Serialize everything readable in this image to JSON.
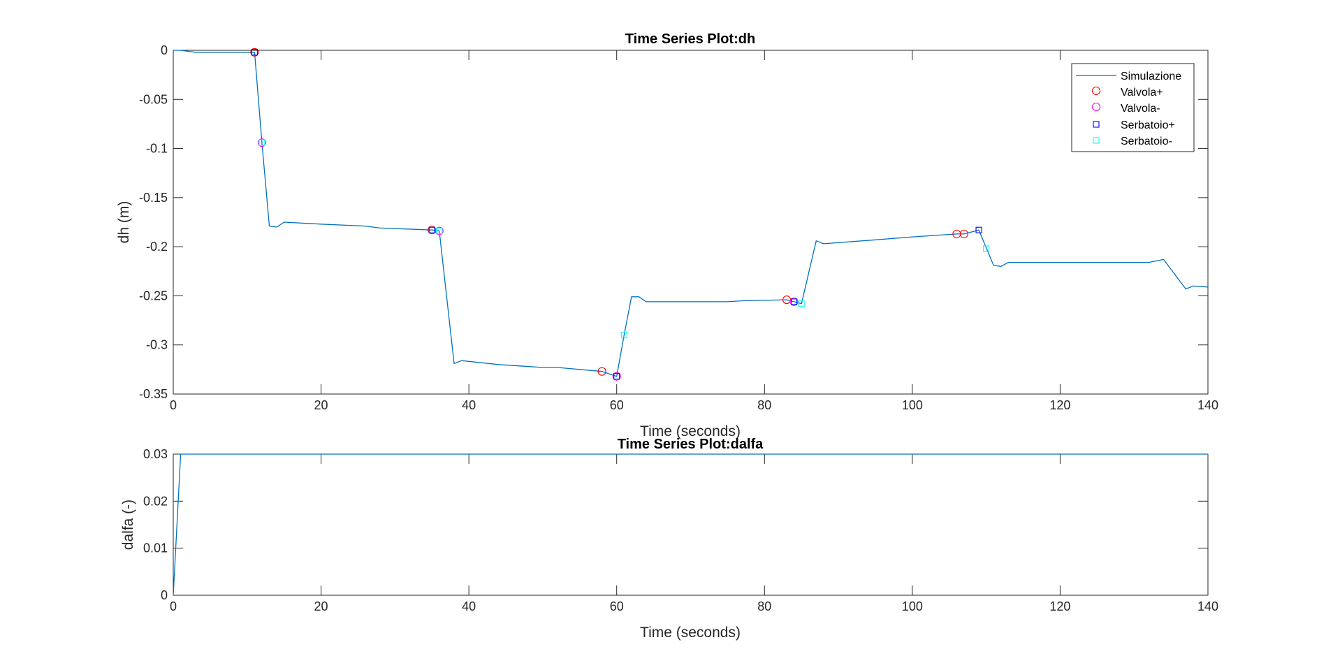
{
  "colors": {
    "simulazione": "#0072BD",
    "valvola_plus": "#FF0000",
    "valvola_minus": "#FF00FF",
    "serbatoio_plus": "#0000FF",
    "serbatoio_minus": "#00FFFF",
    "axes": "#262626"
  },
  "legend": {
    "position": "top-right",
    "entries": [
      {
        "label": "Simulazione",
        "marker": "line"
      },
      {
        "label": "Valvola+",
        "marker": "circle"
      },
      {
        "label": "Valvola-",
        "marker": "circle"
      },
      {
        "label": "Serbatoio+",
        "marker": "square"
      },
      {
        "label": "Serbatoio-",
        "marker": "square"
      }
    ]
  },
  "chart_data": [
    {
      "type": "line",
      "title": "Time Series Plot:dh",
      "xlabel": "Time (seconds)",
      "ylabel": "dh (m)",
      "xlim": [
        0,
        140
      ],
      "ylim": [
        -0.35,
        0
      ],
      "xticks": [
        "0",
        "20",
        "40",
        "60",
        "80",
        "100",
        "120",
        "140"
      ],
      "yticks": [
        "0",
        "-0.05",
        "-0.1",
        "-0.15",
        "-0.2",
        "-0.25",
        "-0.3",
        "-0.35"
      ],
      "grid": false,
      "series": [
        {
          "name": "Simulazione",
          "x": [
            0,
            1,
            3,
            11,
            12,
            13,
            14,
            15,
            20,
            26,
            28,
            35,
            36,
            38,
            39,
            44,
            50,
            52,
            58,
            60,
            61,
            62,
            63,
            64,
            70,
            75,
            77,
            83,
            84,
            85,
            87,
            88,
            95,
            100,
            106,
            107,
            109,
            111,
            112,
            113,
            120,
            124,
            126,
            132,
            134,
            137,
            138,
            140
          ],
          "y": [
            0,
            0,
            -0.002,
            -0.002,
            -0.094,
            -0.179,
            -0.18,
            -0.175,
            -0.177,
            -0.179,
            -0.181,
            -0.183,
            -0.184,
            -0.319,
            -0.316,
            -0.32,
            -0.323,
            -0.323,
            -0.327,
            -0.332,
            -0.29,
            -0.251,
            -0.251,
            -0.256,
            -0.256,
            -0.256,
            -0.255,
            -0.254,
            -0.256,
            -0.258,
            -0.194,
            -0.197,
            -0.193,
            -0.19,
            -0.187,
            -0.187,
            -0.183,
            -0.219,
            -0.22,
            -0.216,
            -0.216,
            -0.216,
            -0.216,
            -0.216,
            -0.213,
            -0.243,
            -0.24,
            -0.241
          ]
        },
        {
          "name": "Valvola+",
          "marker": "circle",
          "x": [
            11,
            35,
            58,
            83,
            106,
            107
          ],
          "y": [
            -0.002,
            -0.183,
            -0.327,
            -0.254,
            -0.187,
            -0.187
          ]
        },
        {
          "name": "Valvola-",
          "marker": "circle",
          "x": [
            12,
            36,
            60,
            84
          ],
          "y": [
            -0.094,
            -0.184,
            -0.332,
            -0.256
          ]
        },
        {
          "name": "Serbatoio+",
          "marker": "square",
          "x": [
            11,
            35,
            60,
            84,
            109
          ],
          "y": [
            -0.002,
            -0.183,
            -0.332,
            -0.256,
            -0.183
          ]
        },
        {
          "name": "Serbatoio-",
          "marker": "square",
          "x": [
            12,
            36,
            61,
            85,
            110
          ],
          "y": [
            -0.094,
            -0.184,
            -0.29,
            -0.258,
            -0.202
          ]
        }
      ]
    },
    {
      "type": "line",
      "title": "Time Series Plot:dalfa",
      "xlabel": "Time (seconds)",
      "ylabel": "dalfa (-)",
      "xlim": [
        0,
        140
      ],
      "ylim": [
        0,
        0.03
      ],
      "xticks": [
        "0",
        "20",
        "40",
        "60",
        "80",
        "100",
        "120",
        "140"
      ],
      "yticks": [
        "0",
        "0.01",
        "0.02",
        "0.03"
      ],
      "grid": false,
      "series": [
        {
          "x": [
            0,
            1,
            140
          ],
          "y": [
            0,
            0.03,
            0.03
          ]
        }
      ]
    }
  ]
}
